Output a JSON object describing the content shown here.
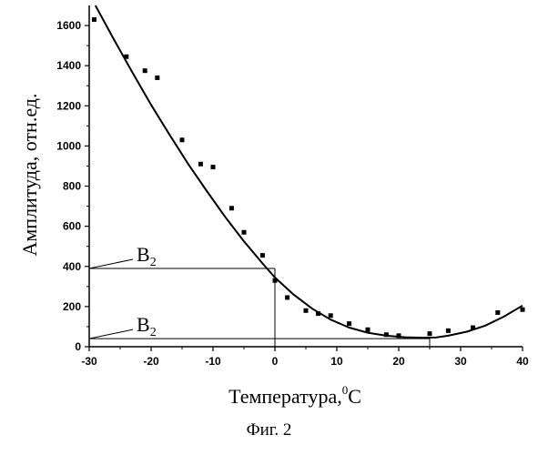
{
  "chart_data": {
    "type": "scatter",
    "xlabel": "Температура,",
    "xlabel_unit": "C",
    "xlabel_unit_sup": "0",
    "ylabel": "Амплитуда, отн.ед.",
    "xlim": [
      -30,
      40
    ],
    "ylim": [
      0,
      1700
    ],
    "xticks": [
      -30,
      -20,
      -10,
      0,
      10,
      20,
      30,
      40
    ],
    "yticks": [
      0,
      200,
      400,
      600,
      800,
      1000,
      1200,
      1400,
      1600
    ],
    "grid": false,
    "series": [
      {
        "type": "scatter",
        "marker": "square",
        "x": [
          -29.2,
          -24,
          -21,
          -19,
          -15,
          -12,
          -10,
          -7,
          -5,
          -2,
          0,
          2,
          5,
          7,
          9,
          12,
          15,
          18,
          20,
          25,
          28,
          32,
          36,
          40
        ],
        "y": [
          1630,
          1445,
          1375,
          1340,
          1030,
          910,
          895,
          690,
          570,
          455,
          330,
          245,
          180,
          165,
          155,
          115,
          85,
          60,
          55,
          65,
          80,
          95,
          170,
          185
        ]
      },
      {
        "type": "line",
        "x": [
          -29,
          -26,
          -23,
          -20,
          -17,
          -14,
          -11,
          -8,
          -5,
          -2,
          0,
          3,
          6,
          9,
          12,
          15,
          18,
          21,
          24,
          26,
          28,
          31,
          34,
          37,
          40
        ],
        "y": [
          1700,
          1530,
          1365,
          1205,
          1055,
          910,
          775,
          645,
          525,
          415,
          345,
          260,
          190,
          135,
          95,
          70,
          55,
          47,
          45,
          46,
          55,
          75,
          105,
          150,
          205
        ]
      }
    ],
    "annotations": [
      {
        "label": "B",
        "sub": "2",
        "y": 390,
        "x_end": 0
      },
      {
        "label": "B",
        "sub": "2",
        "y": 40,
        "x_end": 25
      }
    ]
  },
  "caption": "Фиг. 2"
}
